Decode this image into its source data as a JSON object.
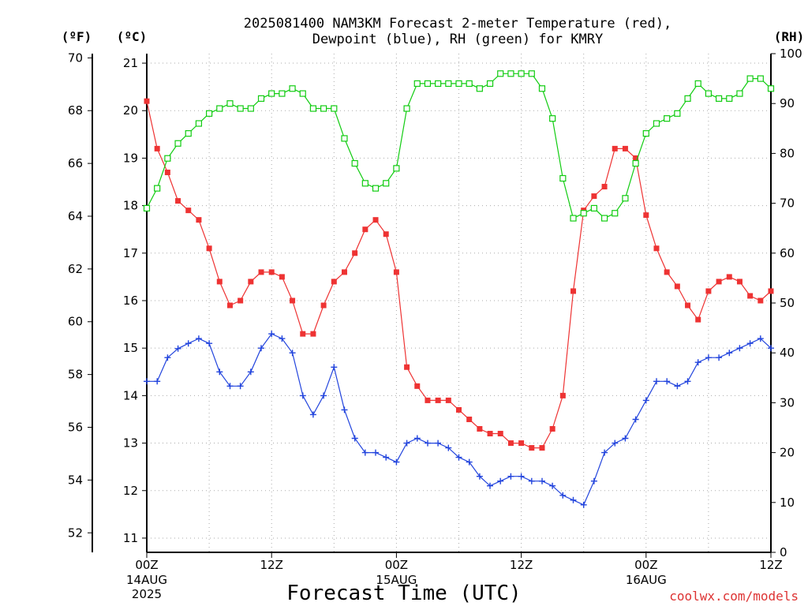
{
  "chart_data": {
    "type": "line",
    "title_line1": "2025081400 NAM3KM Forecast 2-meter Temperature (red),",
    "title_line2": "Dewpoint (blue), RH (green) for KMRY",
    "xlabel": "Forecast Time (UTC)",
    "credit": "coolwx.com/models",
    "left_outer_unit": "(ºF)",
    "left_inner_unit": "(ºC)",
    "right_unit": "(RH)",
    "x_hour_range": [
      0,
      60
    ],
    "y_c_range": [
      10.7,
      21.2
    ],
    "y_rh_range": [
      0,
      100
    ],
    "y_f_ticks": [
      52,
      54,
      56,
      58,
      60,
      62,
      64,
      66,
      68,
      70
    ],
    "y_c_ticks": [
      11,
      12,
      13,
      14,
      15,
      16,
      17,
      18,
      19,
      20,
      21
    ],
    "y_rh_ticks": [
      0,
      10,
      20,
      30,
      40,
      50,
      60,
      70,
      80,
      90,
      100
    ],
    "x_ticks": [
      {
        "hour": 0,
        "label": "00Z",
        "date": "14AUG",
        "year": "2025"
      },
      {
        "hour": 12,
        "label": "12Z",
        "date": "",
        "year": ""
      },
      {
        "hour": 24,
        "label": "00Z",
        "date": "15AUG",
        "year": ""
      },
      {
        "hour": 36,
        "label": "12Z",
        "date": "",
        "year": ""
      },
      {
        "hour": 48,
        "label": "00Z",
        "date": "16AUG",
        "year": ""
      },
      {
        "hour": 60,
        "label": "12Z",
        "date": "",
        "year": ""
      }
    ],
    "grid": true,
    "series": [
      {
        "name": "Temperature",
        "unit": "C",
        "color": "#ee3333",
        "marker": "square-filled",
        "values": [
          20.2,
          19.2,
          18.7,
          18.1,
          17.9,
          17.7,
          17.1,
          16.4,
          15.9,
          16.0,
          16.4,
          16.6,
          16.6,
          16.5,
          16.0,
          15.3,
          15.3,
          15.9,
          16.4,
          16.6,
          17.0,
          17.5,
          17.7,
          17.4,
          16.6,
          14.6,
          14.2,
          13.9,
          13.9,
          13.9,
          13.7,
          13.5,
          13.3,
          13.2,
          13.2,
          13.0,
          13.0,
          12.9,
          12.9,
          13.3,
          14.0,
          16.2,
          17.9,
          18.2,
          18.4,
          19.2,
          19.2,
          19.0,
          17.8,
          17.1,
          16.6,
          16.3,
          15.9,
          15.6,
          16.2,
          16.4,
          16.5,
          16.4,
          16.1,
          16.0,
          16.2
        ]
      },
      {
        "name": "Dewpoint",
        "unit": "C",
        "color": "#2244dd",
        "marker": "plus",
        "values": [
          14.3,
          14.3,
          14.8,
          14.99,
          15.1,
          15.2,
          15.1,
          14.5,
          14.2,
          14.2,
          14.5,
          15.0,
          15.3,
          15.2,
          14.9,
          14.0,
          13.6,
          14.0,
          14.6,
          13.7,
          13.1,
          12.8,
          12.8,
          12.7,
          12.6,
          13.0,
          13.1,
          13.0,
          13.0,
          12.9,
          12.7,
          12.6,
          12.3,
          12.1,
          12.2,
          12.3,
          12.3,
          12.2,
          12.2,
          12.1,
          11.9,
          11.8,
          11.7,
          12.2,
          12.8,
          13.0,
          13.1,
          13.5,
          13.9,
          14.3,
          14.3,
          14.2,
          14.3,
          14.7,
          14.8,
          14.8,
          14.9,
          15.0,
          15.1,
          15.2,
          15.0
        ]
      },
      {
        "name": "RH",
        "unit": "%",
        "color": "#11cc11",
        "marker": "square-open",
        "values": [
          69,
          73,
          79,
          82,
          84,
          86,
          88,
          89,
          90,
          89,
          89,
          91,
          92,
          92,
          93,
          92,
          89,
          89,
          89,
          83,
          78,
          74,
          73,
          74,
          77,
          89,
          94,
          94,
          94,
          94,
          94,
          94,
          93,
          94,
          96,
          96,
          96,
          96,
          93,
          87,
          75,
          67,
          68,
          69,
          67,
          68,
          71,
          78,
          84,
          86,
          87,
          88,
          91,
          94,
          92,
          91,
          91,
          92,
          95,
          95,
          93
        ]
      }
    ]
  }
}
